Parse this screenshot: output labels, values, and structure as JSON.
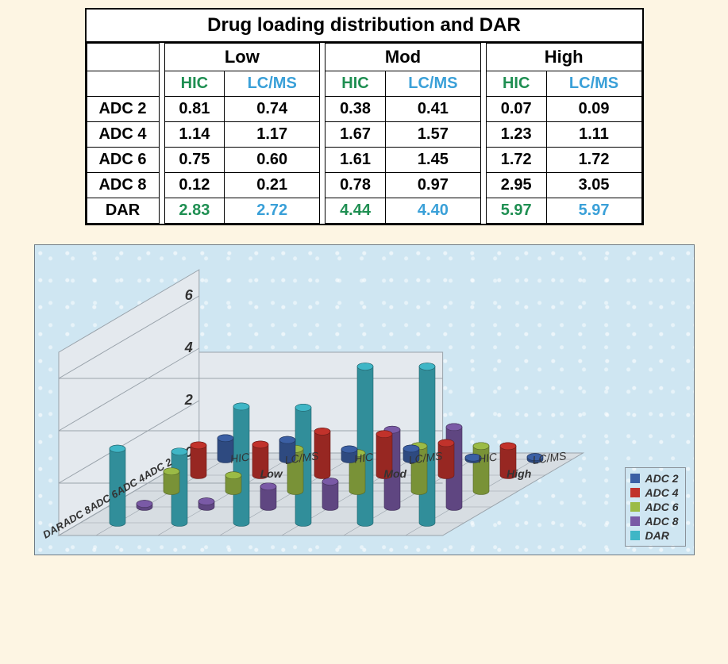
{
  "table": {
    "title": "Drug loading distribution and DAR",
    "categories": [
      "Low",
      "Mod",
      "High"
    ],
    "sub_hic": "HIC",
    "sub_lcms": "LC/MS",
    "rows": [
      {
        "label": "ADC 2",
        "low_hic": "0.81",
        "low_lcms": "0.74",
        "mod_hic": "0.38",
        "mod_lcms": "0.41",
        "high_hic": "0.07",
        "high_lcms": "0.09"
      },
      {
        "label": "ADC 4",
        "low_hic": "1.14",
        "low_lcms": "1.17",
        "mod_hic": "1.67",
        "mod_lcms": "1.57",
        "high_hic": "1.23",
        "high_lcms": "1.11"
      },
      {
        "label": "ADC 6",
        "low_hic": "0.75",
        "low_lcms": "0.60",
        "mod_hic": "1.61",
        "mod_lcms": "1.45",
        "high_hic": "1.72",
        "high_lcms": "1.72"
      },
      {
        "label": "ADC 8",
        "low_hic": "0.12",
        "low_lcms": "0.21",
        "mod_hic": "0.78",
        "mod_lcms": "0.97",
        "high_hic": "2.95",
        "high_lcms": "3.05"
      }
    ],
    "dar_row": {
      "label": "DAR",
      "low_hic": "2.83",
      "low_lcms": "2.72",
      "mod_hic": "4.44",
      "mod_lcms": "4.40",
      "high_hic": "5.97",
      "high_lcms": "5.97"
    }
  },
  "chart": {
    "type": "3d-cylinder-bar",
    "background_color": "#cfe6f2",
    "panel_border": "#6f7b85",
    "floor_fill": "#d7dde2",
    "floor_stroke": "#9aa3ab",
    "wall_fill": "#e4e9ee",
    "grid_color": "#9aa3ab",
    "y_ticks": [
      0,
      2,
      4,
      6
    ],
    "y_max": 7,
    "depth_axis": {
      "series": [
        "ADC 2",
        "ADC 4",
        "ADC 6",
        "ADC 8",
        "DAR"
      ],
      "colors": [
        "#3b5fa4",
        "#c1322b",
        "#9bbb46",
        "#7a5aa6",
        "#3fb6c6"
      ]
    },
    "x_axis": {
      "groups": [
        {
          "label": "Low",
          "cols": [
            "HIC",
            "LC/MS"
          ]
        },
        {
          "label": "Mod",
          "cols": [
            "HIC",
            "LC/MS"
          ]
        },
        {
          "label": "High",
          "cols": [
            "HIC",
            "LC/MS"
          ]
        }
      ]
    },
    "values": {
      "ADC 2": [
        0.81,
        0.74,
        0.38,
        0.41,
        0.07,
        0.09
      ],
      "ADC 4": [
        1.14,
        1.17,
        1.67,
        1.57,
        1.23,
        1.11
      ],
      "ADC 6": [
        0.75,
        0.6,
        1.61,
        1.45,
        1.72,
        1.72
      ],
      "ADC 8": [
        0.12,
        0.21,
        0.78,
        0.97,
        2.95,
        3.05
      ],
      "DAR": [
        2.83,
        2.72,
        4.44,
        4.4,
        5.97,
        5.97
      ]
    },
    "projection": {
      "origin_x": 240,
      "origin_y": 270,
      "x_step": 78,
      "unit_y": 33,
      "depth_dx": -34,
      "depth_dy": 20,
      "cyl_radius": 10
    },
    "legend_labels": [
      "ADC 2",
      "ADC 4",
      "ADC 6",
      "ADC 8",
      "DAR"
    ],
    "axis_fontsize": 18,
    "tick_fontsize": 14
  }
}
